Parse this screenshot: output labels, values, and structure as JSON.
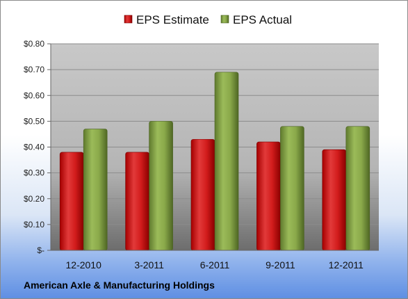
{
  "chart_data": {
    "type": "bar",
    "categories": [
      "12-2010",
      "3-2011",
      "6-2011",
      "9-2011",
      "12-2011"
    ],
    "series": [
      {
        "name": "EPS Estimate",
        "color": "#c00000",
        "values": [
          0.38,
          0.38,
          0.43,
          0.42,
          0.39
        ]
      },
      {
        "name": "EPS Actual",
        "color": "#77933c",
        "values": [
          0.47,
          0.5,
          0.69,
          0.48,
          0.48
        ]
      }
    ],
    "yticks": [
      "$-",
      "$0.10",
      "$0.20",
      "$0.30",
      "$0.40",
      "$0.50",
      "$0.60",
      "$0.70",
      "$0.80"
    ],
    "ylim": [
      0,
      0.8
    ],
    "grid": true,
    "legend": "top-center"
  },
  "footer": {
    "title": "American Axle & Manufacturing Holdings"
  }
}
